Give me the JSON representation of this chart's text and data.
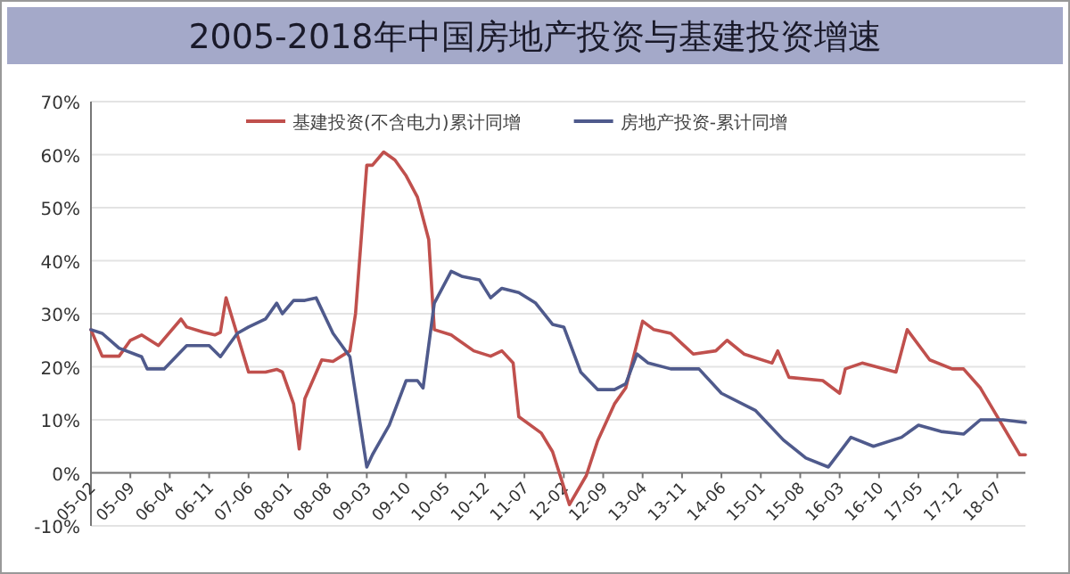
{
  "chart_data": {
    "type": "line",
    "title": "2005-2018年中国房地产投资与基建投资增速",
    "xlim": [
      "2005-02",
      "2018-12"
    ],
    "xticks": [
      {
        "value": "2005-02",
        "label": "05-02"
      },
      {
        "value": "2005-09",
        "label": "05-09"
      },
      {
        "value": "2006-04",
        "label": "06-04"
      },
      {
        "value": "2006-11",
        "label": "06-11"
      },
      {
        "value": "2007-06",
        "label": "07-06"
      },
      {
        "value": "2008-01",
        "label": "08-01"
      },
      {
        "value": "2008-08",
        "label": "08-08"
      },
      {
        "value": "2009-03",
        "label": "09-03"
      },
      {
        "value": "2009-10",
        "label": "09-10"
      },
      {
        "value": "2010-05",
        "label": "10-05"
      },
      {
        "value": "2010-12",
        "label": "10-12"
      },
      {
        "value": "2011-07",
        "label": "11-07"
      },
      {
        "value": "2012-02",
        "label": "12-02"
      },
      {
        "value": "2012-09",
        "label": "12-09"
      },
      {
        "value": "2013-04",
        "label": "13-04"
      },
      {
        "value": "2013-11",
        "label": "13-11"
      },
      {
        "value": "2014-06",
        "label": "14-06"
      },
      {
        "value": "2015-01",
        "label": "15-01"
      },
      {
        "value": "2015-08",
        "label": "15-08"
      },
      {
        "value": "2016-03",
        "label": "16-03"
      },
      {
        "value": "2016-10",
        "label": "16-10"
      },
      {
        "value": "2017-05",
        "label": "17-05"
      },
      {
        "value": "2017-12",
        "label": "17-12"
      },
      {
        "value": "2018-07",
        "label": "18-07"
      }
    ],
    "ylim": [
      -10,
      70
    ],
    "yticks": [
      {
        "value": -10,
        "label": "-10%"
      },
      {
        "value": 0,
        "label": "0%"
      },
      {
        "value": 10,
        "label": "10%"
      },
      {
        "value": 20,
        "label": "20%"
      },
      {
        "value": 30,
        "label": "30%"
      },
      {
        "value": 40,
        "label": "40%"
      },
      {
        "value": 50,
        "label": "50%"
      },
      {
        "value": 60,
        "label": "60%"
      },
      {
        "value": 70,
        "label": "70%"
      }
    ],
    "grid": "y",
    "legend": "top",
    "marker": "none",
    "line_style": "solid",
    "series": [
      {
        "name": "基建投资(不含电力)累计同增",
        "color": "#c0504d",
        "x": [
          "2005-02",
          "2005-04",
          "2005-07",
          "2005-09",
          "2005-11",
          "2006-02",
          "2006-06",
          "2006-07",
          "2006-10",
          "2006-12",
          "2007-01",
          "2007-02",
          "2007-04",
          "2007-06",
          "2007-09",
          "2007-11",
          "2007-12",
          "2008-02",
          "2008-03",
          "2008-04",
          "2008-07",
          "2008-09",
          "2008-12",
          "2009-01",
          "2009-03",
          "2009-04",
          "2009-06",
          "2009-08",
          "2009-10",
          "2009-12",
          "2010-02",
          "2010-03",
          "2010-06",
          "2010-10",
          "2011-01",
          "2011-03",
          "2011-05",
          "2011-06",
          "2011-10",
          "2011-12",
          "2012-03",
          "2012-06",
          "2012-08",
          "2012-11",
          "2013-01",
          "2013-04",
          "2013-06",
          "2013-09",
          "2014-01",
          "2014-05",
          "2014-07",
          "2014-10",
          "2015-03",
          "2015-04",
          "2015-06",
          "2015-12",
          "2016-03",
          "2016-04",
          "2016-07",
          "2017-01",
          "2017-03",
          "2017-07",
          "2017-11",
          "2018-01",
          "2018-04",
          "2018-07",
          "2018-11",
          "2018-12"
        ],
        "values": [
          27,
          22,
          22,
          25,
          26,
          24,
          29,
          27.5,
          26.5,
          26,
          26.5,
          33,
          26,
          19,
          19,
          19.5,
          19,
          13,
          4.5,
          14,
          21.3,
          21,
          23,
          30,
          58,
          58,
          60.5,
          59,
          56,
          52,
          44,
          27,
          26,
          23,
          22,
          23,
          20.7,
          10.6,
          7.5,
          4,
          -6,
          -0.5,
          6,
          13,
          16,
          28.6,
          27,
          26.3,
          22.4,
          23,
          25,
          22.4,
          20.7,
          23,
          18,
          17.4,
          15,
          19.6,
          20.7,
          19,
          27,
          21.3,
          19.6,
          19.6,
          16,
          10.6,
          3.4,
          3.4
        ]
      },
      {
        "name": "房地产投资-累计同增",
        "color": "#4f5a8c",
        "x": [
          "2005-02",
          "2005-04",
          "2005-07",
          "2005-11",
          "2005-12",
          "2006-03",
          "2006-07",
          "2006-11",
          "2007-01",
          "2007-04",
          "2007-06",
          "2007-09",
          "2007-11",
          "2007-12",
          "2008-02",
          "2008-04",
          "2008-06",
          "2008-09",
          "2008-12",
          "2009-03",
          "2009-04",
          "2009-07",
          "2009-10",
          "2009-12",
          "2010-01",
          "2010-03",
          "2010-06",
          "2010-08",
          "2010-11",
          "2011-01",
          "2011-03",
          "2011-06",
          "2011-09",
          "2011-12",
          "2012-02",
          "2012-05",
          "2012-08",
          "2012-11",
          "2013-01",
          "2013-03",
          "2013-05",
          "2013-09",
          "2014-02",
          "2014-06",
          "2014-12",
          "2015-05",
          "2015-09",
          "2016-01",
          "2016-05",
          "2016-09",
          "2017-02",
          "2017-05",
          "2017-09",
          "2018-01",
          "2018-04",
          "2018-08",
          "2018-12"
        ],
        "values": [
          27,
          26.3,
          23.5,
          21.9,
          19.6,
          19.6,
          24,
          24,
          21.9,
          26.3,
          27.5,
          29,
          32,
          30,
          32.5,
          32.5,
          33,
          26.3,
          21.9,
          1.1,
          3.4,
          9,
          17.4,
          17.4,
          16,
          32,
          38,
          37,
          36.4,
          33,
          34.8,
          34,
          32,
          28,
          27.5,
          19,
          15.7,
          15.7,
          16.8,
          22.4,
          20.7,
          19.6,
          19.6,
          15,
          11.8,
          6.2,
          2.8,
          1.1,
          6.7,
          5,
          6.7,
          9,
          7.8,
          7.3,
          10,
          10,
          9.5
        ]
      }
    ]
  }
}
